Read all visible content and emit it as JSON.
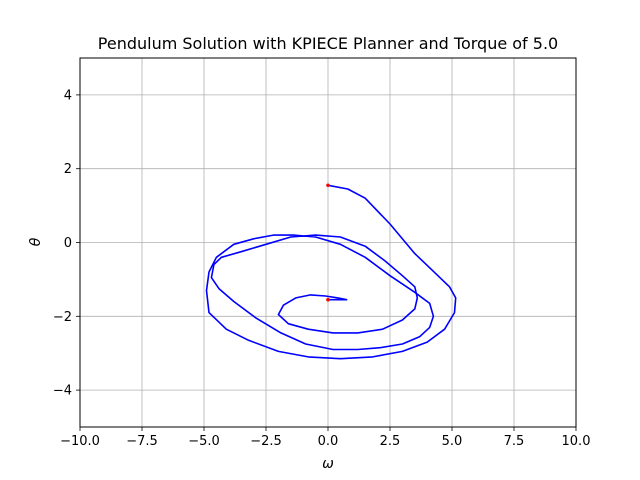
{
  "chart_data": {
    "type": "line",
    "title": "Pendulum Solution with KPIECE Planner and Torque of 5.0",
    "xlabel": "ω",
    "ylabel": "θ",
    "xlim": [
      -10,
      10
    ],
    "ylim": [
      -5,
      5
    ],
    "xticks": [
      -10,
      -7.5,
      -5,
      -2.5,
      0,
      2.5,
      5,
      7.5,
      10
    ],
    "xtick_labels": [
      "−10.0",
      "−7.5",
      "−5.0",
      "−2.5",
      "0.0",
      "2.5",
      "5.0",
      "7.5",
      "10.0"
    ],
    "yticks": [
      -4,
      -2,
      0,
      2,
      4
    ],
    "ytick_labels": [
      "−4",
      "−2",
      "0",
      "2",
      "4"
    ],
    "grid": true,
    "series": [
      {
        "color": "#0000ff",
        "x": [
          0.0,
          0.8,
          1.5,
          2.5,
          3.5,
          4.2,
          4.9,
          5.15,
          5.1,
          4.7,
          4.0,
          3.0,
          1.8,
          0.5,
          -0.8,
          -2.0,
          -3.2,
          -4.1,
          -4.8,
          -4.9,
          -4.8,
          -4.5,
          -3.8,
          -3.0,
          -2.2,
          -1.4,
          -0.5,
          0.5,
          1.5,
          2.5,
          3.5,
          4.1,
          4.25,
          4.1,
          3.7,
          3.0,
          2.1,
          1.2,
          0.2,
          -0.9,
          -1.9,
          -2.9,
          -3.8,
          -4.4,
          -4.7,
          -4.6,
          -4.3,
          -3.5,
          -2.5,
          -1.5,
          -0.5,
          0.5,
          1.5,
          2.3,
          3.0,
          3.5,
          3.6,
          3.5,
          3.0,
          2.2,
          1.2,
          0.2,
          -0.8,
          -1.6,
          -2.0,
          -1.8,
          -1.3,
          -0.7,
          -0.1,
          0.4,
          0.75,
          0.5,
          0.15,
          0.0
        ],
        "y": [
          1.55,
          1.45,
          1.2,
          0.5,
          -0.3,
          -0.75,
          -1.2,
          -1.5,
          -1.9,
          -2.35,
          -2.7,
          -2.95,
          -3.1,
          -3.15,
          -3.1,
          -2.95,
          -2.65,
          -2.35,
          -1.9,
          -1.3,
          -0.8,
          -0.4,
          -0.05,
          0.1,
          0.2,
          0.2,
          0.15,
          -0.05,
          -0.4,
          -0.9,
          -1.35,
          -1.65,
          -2.0,
          -2.3,
          -2.55,
          -2.75,
          -2.85,
          -2.9,
          -2.9,
          -2.75,
          -2.45,
          -2.05,
          -1.6,
          -1.25,
          -0.95,
          -0.6,
          -0.4,
          -0.25,
          -0.05,
          0.15,
          0.2,
          0.15,
          -0.1,
          -0.5,
          -0.9,
          -1.2,
          -1.5,
          -1.8,
          -2.1,
          -2.35,
          -2.45,
          -2.45,
          -2.35,
          -2.2,
          -1.95,
          -1.7,
          -1.5,
          -1.42,
          -1.45,
          -1.5,
          -1.55,
          -1.55,
          -1.55,
          -1.55
        ]
      }
    ],
    "markers": [
      {
        "color": "#ff0000",
        "x": 0.0,
        "y": 1.55
      },
      {
        "color": "#ff0000",
        "x": 0.0,
        "y": -1.55
      }
    ]
  }
}
